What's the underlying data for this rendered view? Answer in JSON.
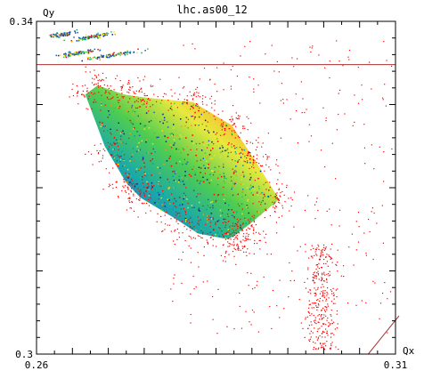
{
  "chart_data": {
    "type": "scatter",
    "title": "lhc.as00_12",
    "xlabel": "Qx",
    "ylabel": "Qy",
    "xlim": [
      0.26,
      0.31
    ],
    "ylim": [
      0.3,
      0.34
    ],
    "x_tick_labels": [
      {
        "value": 0.26,
        "label": "0.26"
      },
      {
        "value": 0.31,
        "label": "0.31"
      }
    ],
    "y_tick_labels": [
      {
        "value": 0.34,
        "label": "0.34"
      },
      {
        "value": 0.3,
        "label": "0.3"
      }
    ],
    "x_ticks": [
      0.26,
      0.2625,
      0.265,
      0.2675,
      0.27,
      0.2725,
      0.275,
      0.2775,
      0.28,
      0.2825,
      0.285,
      0.2875,
      0.29,
      0.2925,
      0.295,
      0.2975,
      0.3,
      0.3025,
      0.305,
      0.3075,
      0.31
    ],
    "y_ticks": [
      0.3,
      0.302,
      0.304,
      0.306,
      0.308,
      0.31,
      0.312,
      0.314,
      0.316,
      0.318,
      0.32,
      0.322,
      0.324,
      0.326,
      0.328,
      0.33,
      0.332,
      0.334,
      0.336,
      0.338,
      0.34
    ],
    "grid": false,
    "reference_lines": [
      {
        "kind": "horizontal",
        "y": 0.3348,
        "color": "#a83232"
      },
      {
        "kind": "segment",
        "x1": 0.3062,
        "y1": 0.3,
        "x2": 0.3105,
        "y2": 0.3046,
        "color": "#a83232"
      }
    ],
    "footprint_region": {
      "polygon": [
        [
          0.2668,
          0.3312
        ],
        [
          0.2695,
          0.325
        ],
        [
          0.2725,
          0.3206
        ],
        [
          0.2745,
          0.3188
        ],
        [
          0.2793,
          0.3163
        ],
        [
          0.2825,
          0.3145
        ],
        [
          0.2867,
          0.3138
        ],
        [
          0.2878,
          0.3144
        ],
        [
          0.2895,
          0.3155
        ],
        [
          0.2938,
          0.3186
        ],
        [
          0.2905,
          0.3232
        ],
        [
          0.2872,
          0.3275
        ],
        [
          0.2818,
          0.3303
        ],
        [
          0.2755,
          0.3308
        ],
        [
          0.2722,
          0.3312
        ],
        [
          0.2685,
          0.3323
        ]
      ]
    },
    "island_clusters": [
      {
        "x": 0.2635,
        "y": 0.3385,
        "spread": 0.0015
      },
      {
        "x": 0.2675,
        "y": 0.3382,
        "spread": 0.0025
      },
      {
        "x": 0.2655,
        "y": 0.3362,
        "spread": 0.002
      },
      {
        "x": 0.2705,
        "y": 0.336,
        "spread": 0.003
      }
    ],
    "color_scale": [
      "#0a1e8c",
      "#1e5ab4",
      "#00a0a0",
      "#3cc83c",
      "#e6e628",
      "#ff9614",
      "#ff0000"
    ],
    "point_color": "#ff0000"
  }
}
